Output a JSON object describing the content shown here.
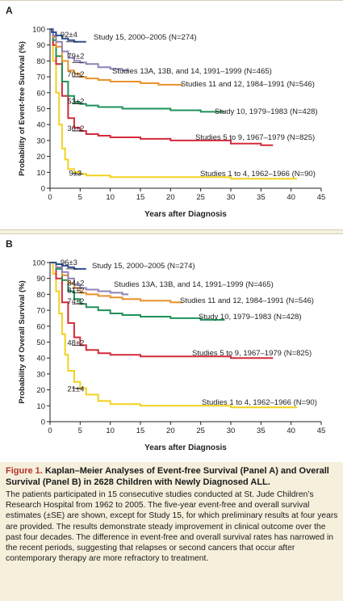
{
  "chart_data": [
    {
      "panel": "A",
      "type": "line",
      "ylabel": "Probability of Event-free Survival (%)",
      "xlabel": "Years after Diagnosis",
      "xlim": [
        0,
        45
      ],
      "ylim": [
        0,
        100
      ],
      "xticks": [
        "0",
        "5",
        "10",
        "15",
        "20",
        "25",
        "30",
        "35",
        "40",
        "45"
      ],
      "yticks": [
        "0",
        "10",
        "20",
        "30",
        "40",
        "50",
        "60",
        "70",
        "80",
        "90",
        "100"
      ],
      "grid": false,
      "series": [
        {
          "name": "Study 15, 2000–2005 (N=274)",
          "color": "#2e4d8f",
          "x": [
            0,
            0.3,
            1,
            2,
            3,
            4,
            5,
            6
          ],
          "y": [
            100,
            98,
            96,
            94,
            93,
            92,
            92,
            92
          ],
          "label_at": 4,
          "label_value": "92±4"
        },
        {
          "name": "Studies 13A, 13B, and 14, 1991–1999 (N=465)",
          "color": "#8f82b8",
          "x": [
            0,
            0.5,
            1,
            2,
            3,
            4,
            5,
            6,
            8,
            10,
            12,
            13
          ],
          "y": [
            100,
            96,
            92,
            86,
            82,
            80,
            79,
            78,
            76,
            75,
            74,
            74
          ],
          "label_at": 5,
          "label_value": "79±2"
        },
        {
          "name": "Studies 11 and 12, 1984–1991 (N=546)",
          "color": "#e8912b",
          "x": [
            0,
            0.5,
            1,
            2,
            3,
            4,
            5,
            6,
            8,
            10,
            12,
            15,
            18,
            20,
            22
          ],
          "y": [
            100,
            95,
            89,
            80,
            74,
            72,
            70,
            69,
            68,
            67,
            67,
            66,
            65,
            65,
            65
          ],
          "label_at": 5,
          "label_value": "70±2"
        },
        {
          "name": "Study 10, 1979–1983 (N=428)",
          "color": "#1f9158",
          "x": [
            0,
            0.5,
            1,
            2,
            3,
            4,
            5,
            6,
            8,
            10,
            12,
            15,
            20,
            25,
            29
          ],
          "y": [
            100,
            93,
            83,
            67,
            58,
            54,
            53,
            52,
            51,
            51,
            50,
            50,
            49,
            48,
            48
          ],
          "label_at": 5,
          "label_value": "53±2"
        },
        {
          "name": "Studies 5 to 9, 1967–1979 (N=825)",
          "color": "#d42a3a",
          "x": [
            0,
            0.5,
            1,
            2,
            3,
            4,
            5,
            6,
            8,
            10,
            12,
            15,
            20,
            25,
            30,
            35,
            37
          ],
          "y": [
            100,
            90,
            78,
            58,
            44,
            38,
            36,
            34,
            33,
            32,
            32,
            31,
            30,
            30,
            28,
            27,
            27
          ],
          "label_at": 5,
          "label_value": "36±2"
        },
        {
          "name": "Studies 1 to 4, 1962–1966 (N=90)",
          "color": "#f1d21d",
          "x": [
            0,
            0.5,
            1,
            1.5,
            2,
            2.5,
            3,
            4,
            5,
            6,
            8,
            10,
            15,
            20,
            25,
            30,
            35,
            41
          ],
          "y": [
            100,
            80,
            60,
            40,
            25,
            18,
            12,
            10,
            9,
            8,
            8,
            7,
            7,
            7,
            7,
            6,
            6,
            6
          ],
          "label_at": 5,
          "label_value": "9±3"
        }
      ]
    },
    {
      "panel": "B",
      "type": "line",
      "ylabel": "Probability of Overall Survival (%)",
      "xlabel": "Years after Diagnosis",
      "xlim": [
        0,
        45
      ],
      "ylim": [
        0,
        100
      ],
      "xticks": [
        "0",
        "5",
        "10",
        "15",
        "20",
        "25",
        "30",
        "35",
        "40",
        "45"
      ],
      "yticks": [
        "0",
        "10",
        "20",
        "30",
        "40",
        "50",
        "60",
        "70",
        "80",
        "90",
        "100"
      ],
      "grid": false,
      "series": [
        {
          "name": "Study 15, 2000–2005 (N=274)",
          "color": "#2e4d8f",
          "x": [
            0,
            1,
            2,
            3,
            4,
            5,
            6
          ],
          "y": [
            100,
            99,
            98,
            97,
            96,
            96,
            96
          ],
          "label_at": 4,
          "label_value": "96±3"
        },
        {
          "name": "Studies 13A, 13B, and 14, 1991–1999 (N=465)",
          "color": "#8f82b8",
          "x": [
            0,
            1,
            2,
            3,
            4,
            5,
            6,
            8,
            10,
            12,
            13
          ],
          "y": [
            100,
            97,
            94,
            90,
            86,
            84,
            83,
            82,
            81,
            80,
            80
          ],
          "label_at": 5,
          "label_value": "84±2"
        },
        {
          "name": "Studies 11 and 12, 1984–1991 (N=546)",
          "color": "#e8912b",
          "x": [
            0,
            1,
            2,
            3,
            4,
            5,
            6,
            8,
            10,
            12,
            15,
            18,
            20,
            22
          ],
          "y": [
            100,
            97,
            92,
            87,
            84,
            81,
            80,
            79,
            78,
            77,
            76,
            76,
            75,
            75
          ],
          "label_at": 5,
          "label_value": "81±2"
        },
        {
          "name": "Study 10, 1979–1983 (N=428)",
          "color": "#1f9158",
          "x": [
            0,
            1,
            2,
            3,
            4,
            5,
            6,
            8,
            10,
            12,
            15,
            20,
            25,
            29
          ],
          "y": [
            100,
            96,
            89,
            82,
            77,
            74,
            72,
            70,
            68,
            67,
            66,
            65,
            64,
            64
          ],
          "label_at": 5,
          "label_value": "74±2"
        },
        {
          "name": "Studies 5 to 9, 1967–1979 (N=825)",
          "color": "#d42a3a",
          "x": [
            0,
            1,
            2,
            3,
            4,
            5,
            6,
            8,
            10,
            12,
            15,
            20,
            25,
            30,
            35,
            37
          ],
          "y": [
            100,
            90,
            75,
            62,
            53,
            48,
            45,
            43,
            42,
            42,
            41,
            41,
            41,
            40,
            40,
            40
          ],
          "label_at": 5,
          "label_value": "48±2"
        },
        {
          "name": "Studies 1 to 4, 1962–1966 (N=90)",
          "color": "#f1d21d",
          "x": [
            0,
            0.5,
            1,
            1.5,
            2,
            2.5,
            3,
            4,
            5,
            6,
            8,
            10,
            15,
            20,
            25,
            30,
            35,
            41
          ],
          "y": [
            100,
            93,
            82,
            68,
            55,
            42,
            32,
            25,
            21,
            17,
            13,
            11,
            10,
            10,
            10,
            9,
            9,
            9
          ],
          "label_at": 5,
          "label_value": "21±4"
        }
      ]
    }
  ],
  "panels": {
    "A": {
      "letter": "A"
    },
    "B": {
      "letter": "B"
    }
  },
  "caption": {
    "figure_label": "Figure 1.",
    "title": "Kaplan–Meier Analyses of Event-free Survival (Panel A) and Overall Survival (Panel B) in 2628 Children with Newly Diagnosed ALL.",
    "body": "The patients participated in 15 consecutive studies conducted at St. Jude Children’s Research Hospital from 1962 to 2005. The five-year event-free and overall survival estimates (±SE) are shown, except for Study 15, for which preliminary results at four years are provided. The results demonstrate steady improvement in clinical outcome over the past four decades. The difference in event-free and overall survival rates has narrowed in the recent periods, suggesting that relapses or second cancers that occur after contemporary therapy are more refractory to treatment."
  }
}
